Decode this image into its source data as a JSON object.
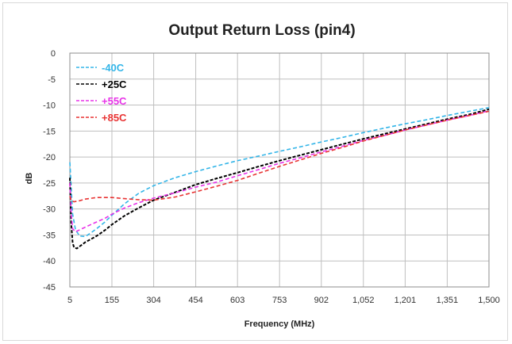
{
  "chart_data": {
    "type": "line",
    "title": "Output Return Loss (pin4)",
    "xlabel": "Frequency (MHz)",
    "ylabel": "dB",
    "xlim": [
      5,
      1500
    ],
    "ylim": [
      -45,
      0
    ],
    "x_ticks": [
      5,
      155,
      304,
      454,
      603,
      753,
      902,
      1052,
      1201,
      1351,
      1500
    ],
    "x_tick_labels": [
      "5",
      "155",
      "304",
      "454",
      "603",
      "753",
      "902",
      "1,052",
      "1,201",
      "1,351",
      "1,500"
    ],
    "y_ticks": [
      0,
      -5,
      -10,
      -15,
      -20,
      -25,
      -30,
      -35,
      -40,
      -45
    ],
    "y_tick_labels": [
      "0",
      "-5",
      "-10",
      "-15",
      "-20",
      "-25",
      "-30",
      "-35",
      "-40",
      "-45"
    ],
    "grid": true,
    "legend_position": "top-left",
    "series": [
      {
        "name": "-40C",
        "color": "#33b5e8",
        "x": [
          5,
          15,
          25,
          40,
          60,
          80,
          100,
          130,
          155,
          200,
          250,
          304,
          380,
          454,
          530,
          603,
          680,
          753,
          830,
          902,
          980,
          1052,
          1130,
          1201,
          1280,
          1351,
          1430,
          1500
        ],
        "y": [
          -21,
          -31,
          -34,
          -35.2,
          -35.3,
          -34.6,
          -33.8,
          -32.5,
          -31.2,
          -29,
          -27,
          -25.5,
          -24,
          -22.8,
          -21.7,
          -20.7,
          -19.8,
          -18.9,
          -18,
          -17.1,
          -16.2,
          -15.3,
          -14.4,
          -13.6,
          -12.8,
          -12,
          -11.2,
          -10.5
        ]
      },
      {
        "name": "+25C",
        "color": "#000000",
        "x": [
          5,
          10,
          15,
          20,
          30,
          45,
          60,
          80,
          100,
          130,
          155,
          200,
          250,
          304,
          380,
          454,
          530,
          603,
          680,
          753,
          830,
          902,
          980,
          1052,
          1130,
          1201,
          1280,
          1351,
          1430,
          1500
        ],
        "y": [
          -24,
          -33,
          -36.5,
          -37.4,
          -37.6,
          -37,
          -36.4,
          -35.8,
          -35.2,
          -34.1,
          -33,
          -31.3,
          -29.8,
          -28.3,
          -26.8,
          -25.3,
          -24.1,
          -23,
          -21.8,
          -20.7,
          -19.6,
          -18.6,
          -17.5,
          -16.5,
          -15.5,
          -14.6,
          -13.6,
          -12.7,
          -11.8,
          -10.8
        ]
      },
      {
        "name": "+55C",
        "color": "#e833e8",
        "x": [
          5,
          10,
          15,
          25,
          40,
          60,
          80,
          100,
          130,
          155,
          200,
          250,
          304,
          380,
          454,
          530,
          603,
          680,
          753,
          830,
          902,
          980,
          1052,
          1130,
          1201,
          1280,
          1351,
          1430,
          1500
        ],
        "y": [
          -25,
          -31,
          -33.8,
          -34.4,
          -34,
          -33.5,
          -33,
          -32.5,
          -31.8,
          -31,
          -29.8,
          -28.8,
          -27.9,
          -26.9,
          -25.8,
          -24.8,
          -23.6,
          -22.4,
          -21.2,
          -20.1,
          -19,
          -17.9,
          -16.8,
          -15.8,
          -14.8,
          -13.8,
          -12.9,
          -12,
          -11.1
        ]
      },
      {
        "name": "+85C",
        "color": "#e83333",
        "x": [
          5,
          10,
          20,
          40,
          60,
          100,
          155,
          200,
          250,
          304,
          380,
          454,
          530,
          603,
          680,
          753,
          830,
          902,
          980,
          1052,
          1130,
          1201,
          1280,
          1351,
          1430,
          1500
        ],
        "y": [
          -27.5,
          -28.4,
          -28.6,
          -28.4,
          -28.1,
          -27.8,
          -27.8,
          -28,
          -28.2,
          -28.3,
          -27.7,
          -26.7,
          -25.6,
          -24.5,
          -23.1,
          -21.8,
          -20.5,
          -19.3,
          -18.1,
          -16.9,
          -15.8,
          -14.8,
          -13.8,
          -12.9,
          -12,
          -11.2
        ]
      }
    ]
  }
}
